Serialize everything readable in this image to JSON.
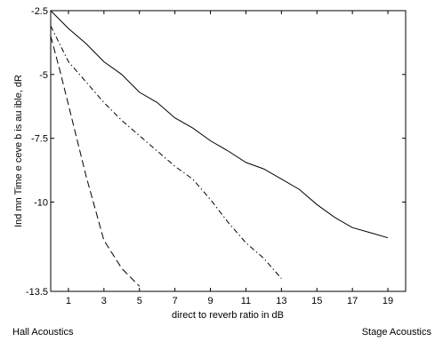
{
  "chart_data": {
    "type": "line",
    "title": "",
    "xlabel": "direct to reverb ratio in dB",
    "ylabel": "Ind mn Time e ceve b is au ible, dR",
    "xlim": [
      0,
      20
    ],
    "ylim": [
      -13.5,
      -2.5
    ],
    "xticks": [
      1,
      3,
      5,
      7,
      9,
      11,
      13,
      15,
      17,
      19
    ],
    "xtick_labels": [
      "1",
      "3",
      "5",
      "7",
      "9",
      "11",
      "13",
      "15",
      "17",
      "19"
    ],
    "yticks": [
      -2.5,
      -5,
      -7.5,
      -10,
      -13.5
    ],
    "ytick_labels": [
      "-2.5",
      "-5",
      "-7.5",
      "-10",
      "-13.5"
    ],
    "grid": false,
    "series": [
      {
        "style": "solid",
        "x": [
          0,
          1,
          2,
          3,
          4,
          5,
          6,
          7,
          8,
          9,
          10,
          11,
          12,
          13,
          14,
          15,
          16,
          17,
          18,
          19
        ],
        "y": [
          -2.5,
          -3.2,
          -3.8,
          -4.5,
          -5.0,
          -5.7,
          -6.1,
          -6.7,
          -7.1,
          -7.6,
          -8.0,
          -8.45,
          -8.7,
          -9.1,
          -9.5,
          -10.1,
          -10.6,
          -11.0,
          -11.2,
          -11.4
        ]
      },
      {
        "style": "dashdot",
        "x": [
          0,
          1,
          2,
          3,
          4,
          5,
          6,
          7,
          8,
          9,
          10,
          11,
          12,
          13
        ],
        "y": [
          -3.1,
          -4.5,
          -5.3,
          -6.1,
          -6.8,
          -7.4,
          -8.0,
          -8.6,
          -9.1,
          -9.9,
          -10.8,
          -11.6,
          -12.2,
          -13.0
        ]
      },
      {
        "style": "dashed",
        "x": [
          0,
          0.5,
          1,
          2,
          3,
          4,
          5
        ],
        "y": [
          -3.5,
          -4.8,
          -6.2,
          -9.0,
          -11.5,
          -12.6,
          -13.3
        ]
      }
    ]
  },
  "footer": {
    "left": "Hall Acoustics",
    "right": "Stage Acoustics"
  }
}
